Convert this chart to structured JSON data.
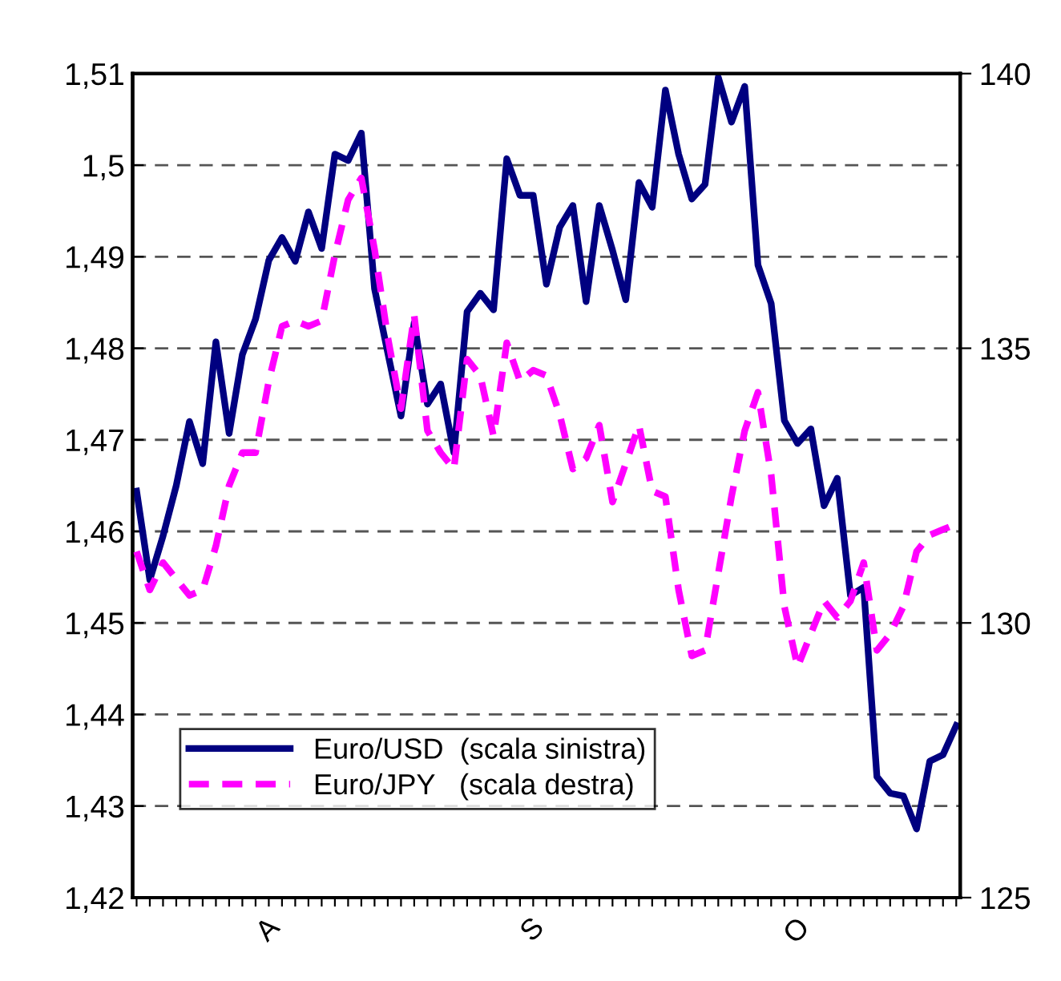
{
  "chart_data": {
    "type": "line",
    "categories": [
      null,
      null,
      null,
      null,
      null,
      null,
      null,
      null,
      null,
      null,
      "A",
      null,
      null,
      null,
      null,
      null,
      null,
      null,
      null,
      null,
      null,
      null,
      null,
      null,
      null,
      null,
      null,
      null,
      null,
      null,
      "S",
      null,
      null,
      null,
      null,
      null,
      null,
      null,
      null,
      null,
      null,
      null,
      null,
      null,
      null,
      null,
      null,
      null,
      null,
      null,
      "O",
      null,
      null,
      null,
      null,
      null,
      null,
      null,
      null,
      null,
      null,
      null,
      null
    ],
    "series": [
      {
        "name": "Euro/USD  (scala sinistra)",
        "color": "#000080",
        "line_style": "solid",
        "values": [
          1.4644,
          1.4547,
          1.4595,
          1.465,
          1.472,
          1.4674,
          1.4807,
          1.4707,
          1.4793,
          1.4832,
          1.4896,
          1.4921,
          1.4895,
          1.4949,
          1.4909,
          1.5012,
          1.5005,
          1.5035,
          1.4865,
          1.4795,
          1.4726,
          1.4828,
          1.4739,
          1.4761,
          1.4686,
          1.484,
          1.486,
          1.4842,
          1.5007,
          1.4967,
          1.4967,
          1.487,
          1.4932,
          1.4956,
          1.4851,
          1.4956,
          1.4907,
          1.4853,
          1.4981,
          1.4954,
          1.5082,
          1.5012,
          1.4963,
          1.4979,
          1.5096,
          1.5047,
          1.5086,
          1.4891,
          1.4849,
          1.4721,
          1.4696,
          1.4712,
          1.4628,
          1.4658,
          1.453,
          1.4539,
          1.4332,
          1.4314,
          1.4311,
          1.4275,
          1.4349,
          1.4356,
          1.4388
        ]
      },
      {
        "name": "Euro/JPY   (scala destra)",
        "color": "#ff00ff",
        "line_style": "dashed",
        "axis": "y2",
        "values": [
          131.3,
          130.6,
          131.1,
          130.8,
          130.5,
          130.6,
          131.4,
          132.5,
          133.1,
          133.1,
          134.4,
          135.4,
          135.5,
          135.4,
          135.5,
          136.7,
          137.7,
          138.1,
          136.8,
          135.2,
          133.9,
          135.6,
          133.5,
          133.1,
          132.8,
          134.8,
          134.5,
          133.4,
          135.1,
          134.4,
          134.6,
          134.5,
          133.8,
          132.8,
          133.0,
          133.6,
          132.2,
          132.9,
          133.6,
          132.4,
          132.3,
          130.6,
          129.4,
          129.5,
          130.9,
          132.3,
          133.5,
          134.2,
          132.7,
          130.3,
          129.2,
          129.8,
          130.4,
          130.1,
          130.4,
          131.1,
          129.5,
          129.8,
          130.3,
          131.3,
          131.6,
          131.7,
          131.8
        ]
      }
    ],
    "ylim": [
      1.42,
      1.51
    ],
    "yticks": [
      {
        "value": 1.42,
        "label": "1,42"
      },
      {
        "value": 1.43,
        "label": "1,43"
      },
      {
        "value": 1.44,
        "label": "1,44"
      },
      {
        "value": 1.45,
        "label": "1,45"
      },
      {
        "value": 1.46,
        "label": "1,46"
      },
      {
        "value": 1.47,
        "label": "1,47"
      },
      {
        "value": 1.48,
        "label": "1,48"
      },
      {
        "value": 1.49,
        "label": "1,49"
      },
      {
        "value": 1.5,
        "label": "1,5"
      },
      {
        "value": 1.51,
        "label": "1,51"
      }
    ],
    "y2lim": [
      125,
      140
    ],
    "y2ticks": [
      125,
      130,
      135,
      140
    ],
    "grid": "y",
    "legend": "bottom left",
    "marker": "none"
  }
}
